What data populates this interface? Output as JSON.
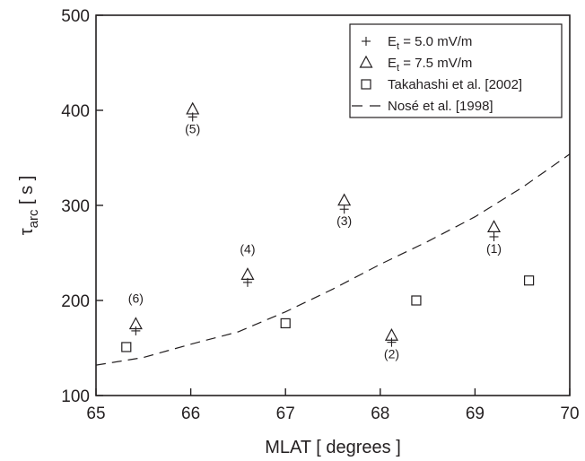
{
  "chart_data": {
    "type": "scatter",
    "title": "",
    "xlabel": "MLAT [ degrees ]",
    "ylabel": {
      "base": "τ",
      "sub": "arc",
      "unit": " [ s ]"
    },
    "xlim": [
      65,
      70
    ],
    "ylim": [
      100,
      500
    ],
    "x_ticks": [
      65,
      66,
      67,
      68,
      69,
      70
    ],
    "y_ticks": [
      100,
      200,
      300,
      400,
      500
    ],
    "grid": false,
    "legend_position": "top-right",
    "legend": [
      {
        "marker": "plus",
        "pre": "E",
        "sub": "t",
        "post": " = 5.0 mV/m"
      },
      {
        "marker": "triangle",
        "pre": "E",
        "sub": "t",
        "post": " = 7.5 mV/m"
      },
      {
        "marker": "square",
        "pre": "Takahashi et al. [2002]",
        "sub": "",
        "post": ""
      },
      {
        "marker": "dash",
        "pre": "Nosé et al. [1998]",
        "sub": "",
        "post": ""
      }
    ],
    "series": [
      {
        "marker": "plus",
        "points": [
          {
            "x": 69.2,
            "y": 267
          },
          {
            "x": 68.12,
            "y": 156
          },
          {
            "x": 67.62,
            "y": 296
          },
          {
            "x": 66.6,
            "y": 219
          },
          {
            "x": 66.02,
            "y": 393
          },
          {
            "x": 65.42,
            "y": 168
          }
        ]
      },
      {
        "marker": "triangle",
        "points": [
          {
            "x": 69.2,
            "y": 277
          },
          {
            "x": 68.12,
            "y": 163
          },
          {
            "x": 67.62,
            "y": 305
          },
          {
            "x": 66.6,
            "y": 227
          },
          {
            "x": 66.02,
            "y": 401
          },
          {
            "x": 65.42,
            "y": 175
          }
        ]
      },
      {
        "marker": "square",
        "points": [
          {
            "x": 65.32,
            "y": 151
          },
          {
            "x": 67.0,
            "y": 176
          },
          {
            "x": 68.38,
            "y": 200
          },
          {
            "x": 69.57,
            "y": 221
          }
        ]
      },
      {
        "marker": "dash",
        "type": "line",
        "points": [
          {
            "x": 65.0,
            "y": 132
          },
          {
            "x": 65.5,
            "y": 140
          },
          {
            "x": 66.0,
            "y": 154
          },
          {
            "x": 66.5,
            "y": 167
          },
          {
            "x": 67.0,
            "y": 188
          },
          {
            "x": 67.5,
            "y": 212
          },
          {
            "x": 68.0,
            "y": 238
          },
          {
            "x": 68.5,
            "y": 262
          },
          {
            "x": 69.0,
            "y": 288
          },
          {
            "x": 69.5,
            "y": 319
          },
          {
            "x": 70.0,
            "y": 354
          }
        ]
      }
    ],
    "annotations": [
      {
        "text": "(1)",
        "x": 69.2,
        "y": 267
      },
      {
        "text": "(2)",
        "x": 68.12,
        "y": 156
      },
      {
        "text": "(3)",
        "x": 67.62,
        "y": 296
      },
      {
        "text": "(4)",
        "x": 66.6,
        "y": 227
      },
      {
        "text": "(5)",
        "x": 66.02,
        "y": 393
      },
      {
        "text": "(6)",
        "x": 65.42,
        "y": 175
      }
    ],
    "colors": {
      "ink": "#231f20",
      "background": "#ffffff"
    }
  }
}
